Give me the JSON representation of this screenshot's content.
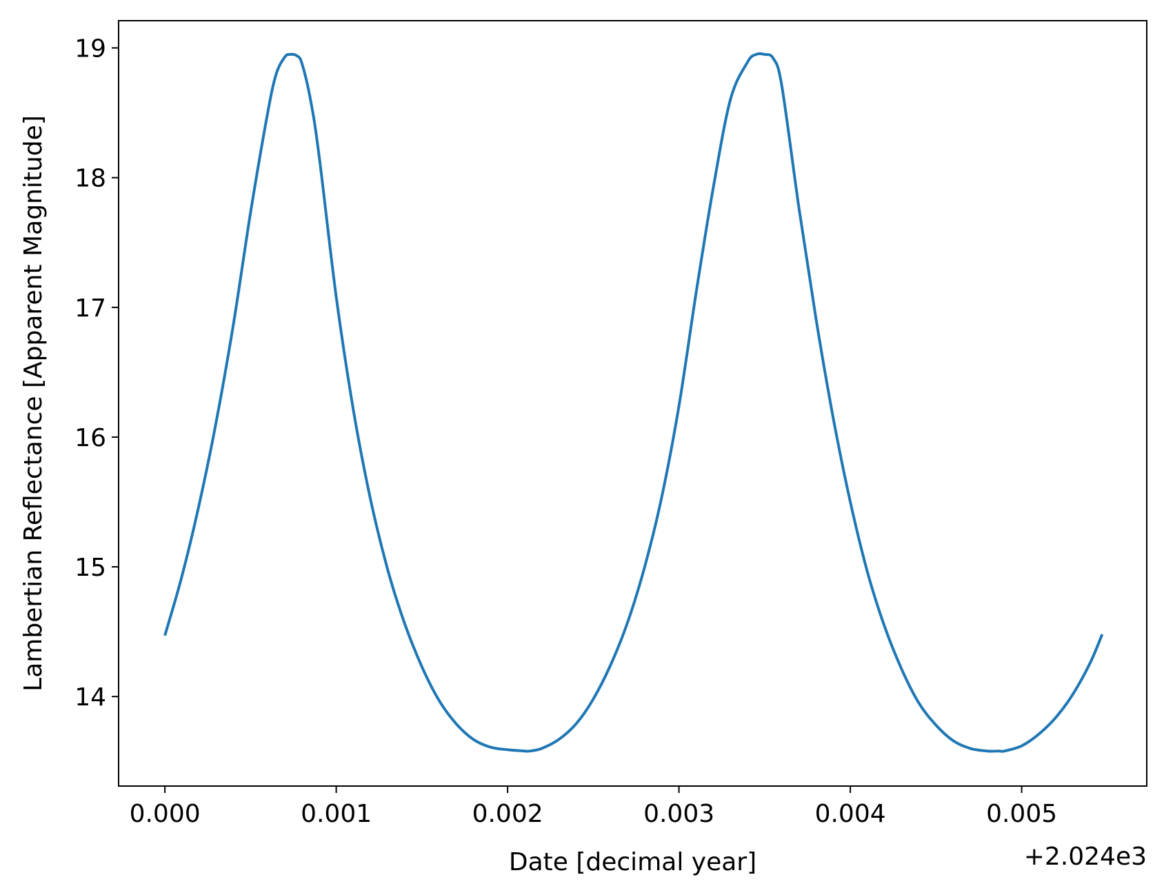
{
  "chart_data": {
    "type": "line",
    "title": "",
    "xlabel": "Date [decimal year]",
    "ylabel": "Lambertian Reflectance [Apparent Magnitude]",
    "x_offset_label": "+2.024e3",
    "xlim": [
      2023.99973,
      2024.00573
    ],
    "ylim": [
      13.31,
      19.21
    ],
    "x_ticks": [
      2024.0,
      2024.001,
      2024.002,
      2024.003,
      2024.004,
      2024.005
    ],
    "x_tick_labels": [
      "0.000",
      "0.001",
      "0.002",
      "0.003",
      "0.004",
      "0.005"
    ],
    "y_ticks": [
      14,
      15,
      16,
      17,
      18,
      19
    ],
    "y_tick_labels": [
      "14",
      "15",
      "16",
      "17",
      "18",
      "19"
    ],
    "grid": false,
    "series": [
      {
        "color": "#1f77b4",
        "x": [
          2024.0,
          2024.0001,
          2024.0002,
          2024.0003,
          2024.0004,
          2024.0005,
          2024.0006,
          2024.00065,
          2024.0007,
          2024.00073,
          2024.00077,
          2024.0008,
          2024.00085,
          2024.0009,
          2024.001,
          2024.0011,
          2024.0012,
          2024.0013,
          2024.0014,
          2024.0015,
          2024.0016,
          2024.0017,
          2024.0018,
          2024.0019,
          2024.002,
          2024.0021,
          2024.00213,
          2024.0022,
          2024.0023,
          2024.0024,
          2024.0025,
          2024.0026,
          2024.0027,
          2024.0028,
          2024.0029,
          2024.003,
          2024.0031,
          2024.0032,
          2024.0033,
          2024.0034,
          2024.00345,
          2024.0035,
          2024.00355,
          2024.0036,
          2024.0037,
          2024.0038,
          2024.0039,
          2024.004,
          2024.0041,
          2024.0042,
          2024.0043,
          2024.0044,
          2024.0045,
          2024.0046,
          2024.0047,
          2024.0048,
          2024.00487,
          2024.0049,
          2024.005,
          2024.0051,
          2024.0052,
          2024.0053,
          2024.0054,
          2024.00547
        ],
        "y": [
          14.47,
          14.93,
          15.48,
          16.12,
          16.87,
          17.73,
          18.5,
          18.8,
          18.93,
          18.95,
          18.94,
          18.88,
          18.6,
          18.17,
          17.08,
          16.21,
          15.52,
          14.98,
          14.56,
          14.23,
          13.97,
          13.79,
          13.67,
          13.61,
          13.59,
          13.58,
          13.58,
          13.6,
          13.67,
          13.79,
          13.98,
          14.24,
          14.57,
          15.0,
          15.54,
          16.24,
          17.11,
          17.92,
          18.6,
          18.89,
          18.95,
          18.95,
          18.92,
          18.71,
          17.77,
          16.91,
          16.15,
          15.5,
          14.96,
          14.54,
          14.21,
          13.95,
          13.78,
          13.66,
          13.6,
          13.58,
          13.58,
          13.58,
          13.62,
          13.71,
          13.84,
          14.02,
          14.26,
          14.48
        ]
      }
    ]
  }
}
